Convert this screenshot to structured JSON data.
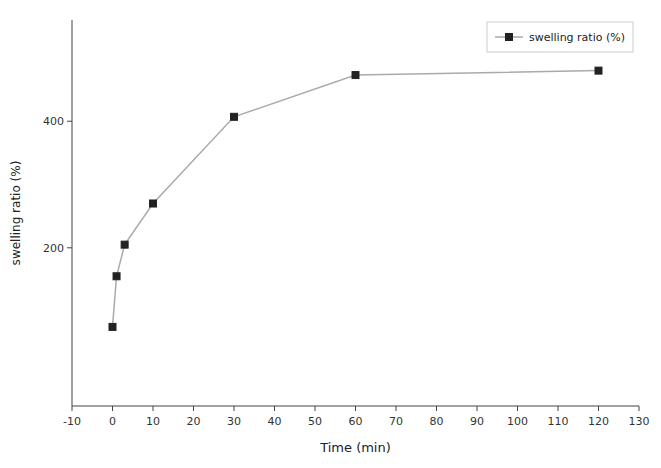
{
  "chart_data": {
    "type": "line",
    "xlabel": "Time (min)",
    "ylabel": "swelling ratio (%)",
    "x": [
      0,
      1,
      3,
      10,
      30,
      60,
      120
    ],
    "series": [
      {
        "name": "swelling ratio (%)",
        "color": "#aaaaaa",
        "marker": "square",
        "values": [
          75,
          155,
          205,
          270,
          407,
          473,
          480
        ]
      }
    ],
    "xlim": [
      -10,
      130
    ],
    "ylim": [
      -50,
      560
    ],
    "xticks": [
      -10,
      0,
      10,
      20,
      30,
      40,
      50,
      60,
      70,
      80,
      90,
      100,
      110,
      120,
      130
    ],
    "yticks": [
      200,
      400
    ],
    "grid": false,
    "legend": "upper right"
  }
}
